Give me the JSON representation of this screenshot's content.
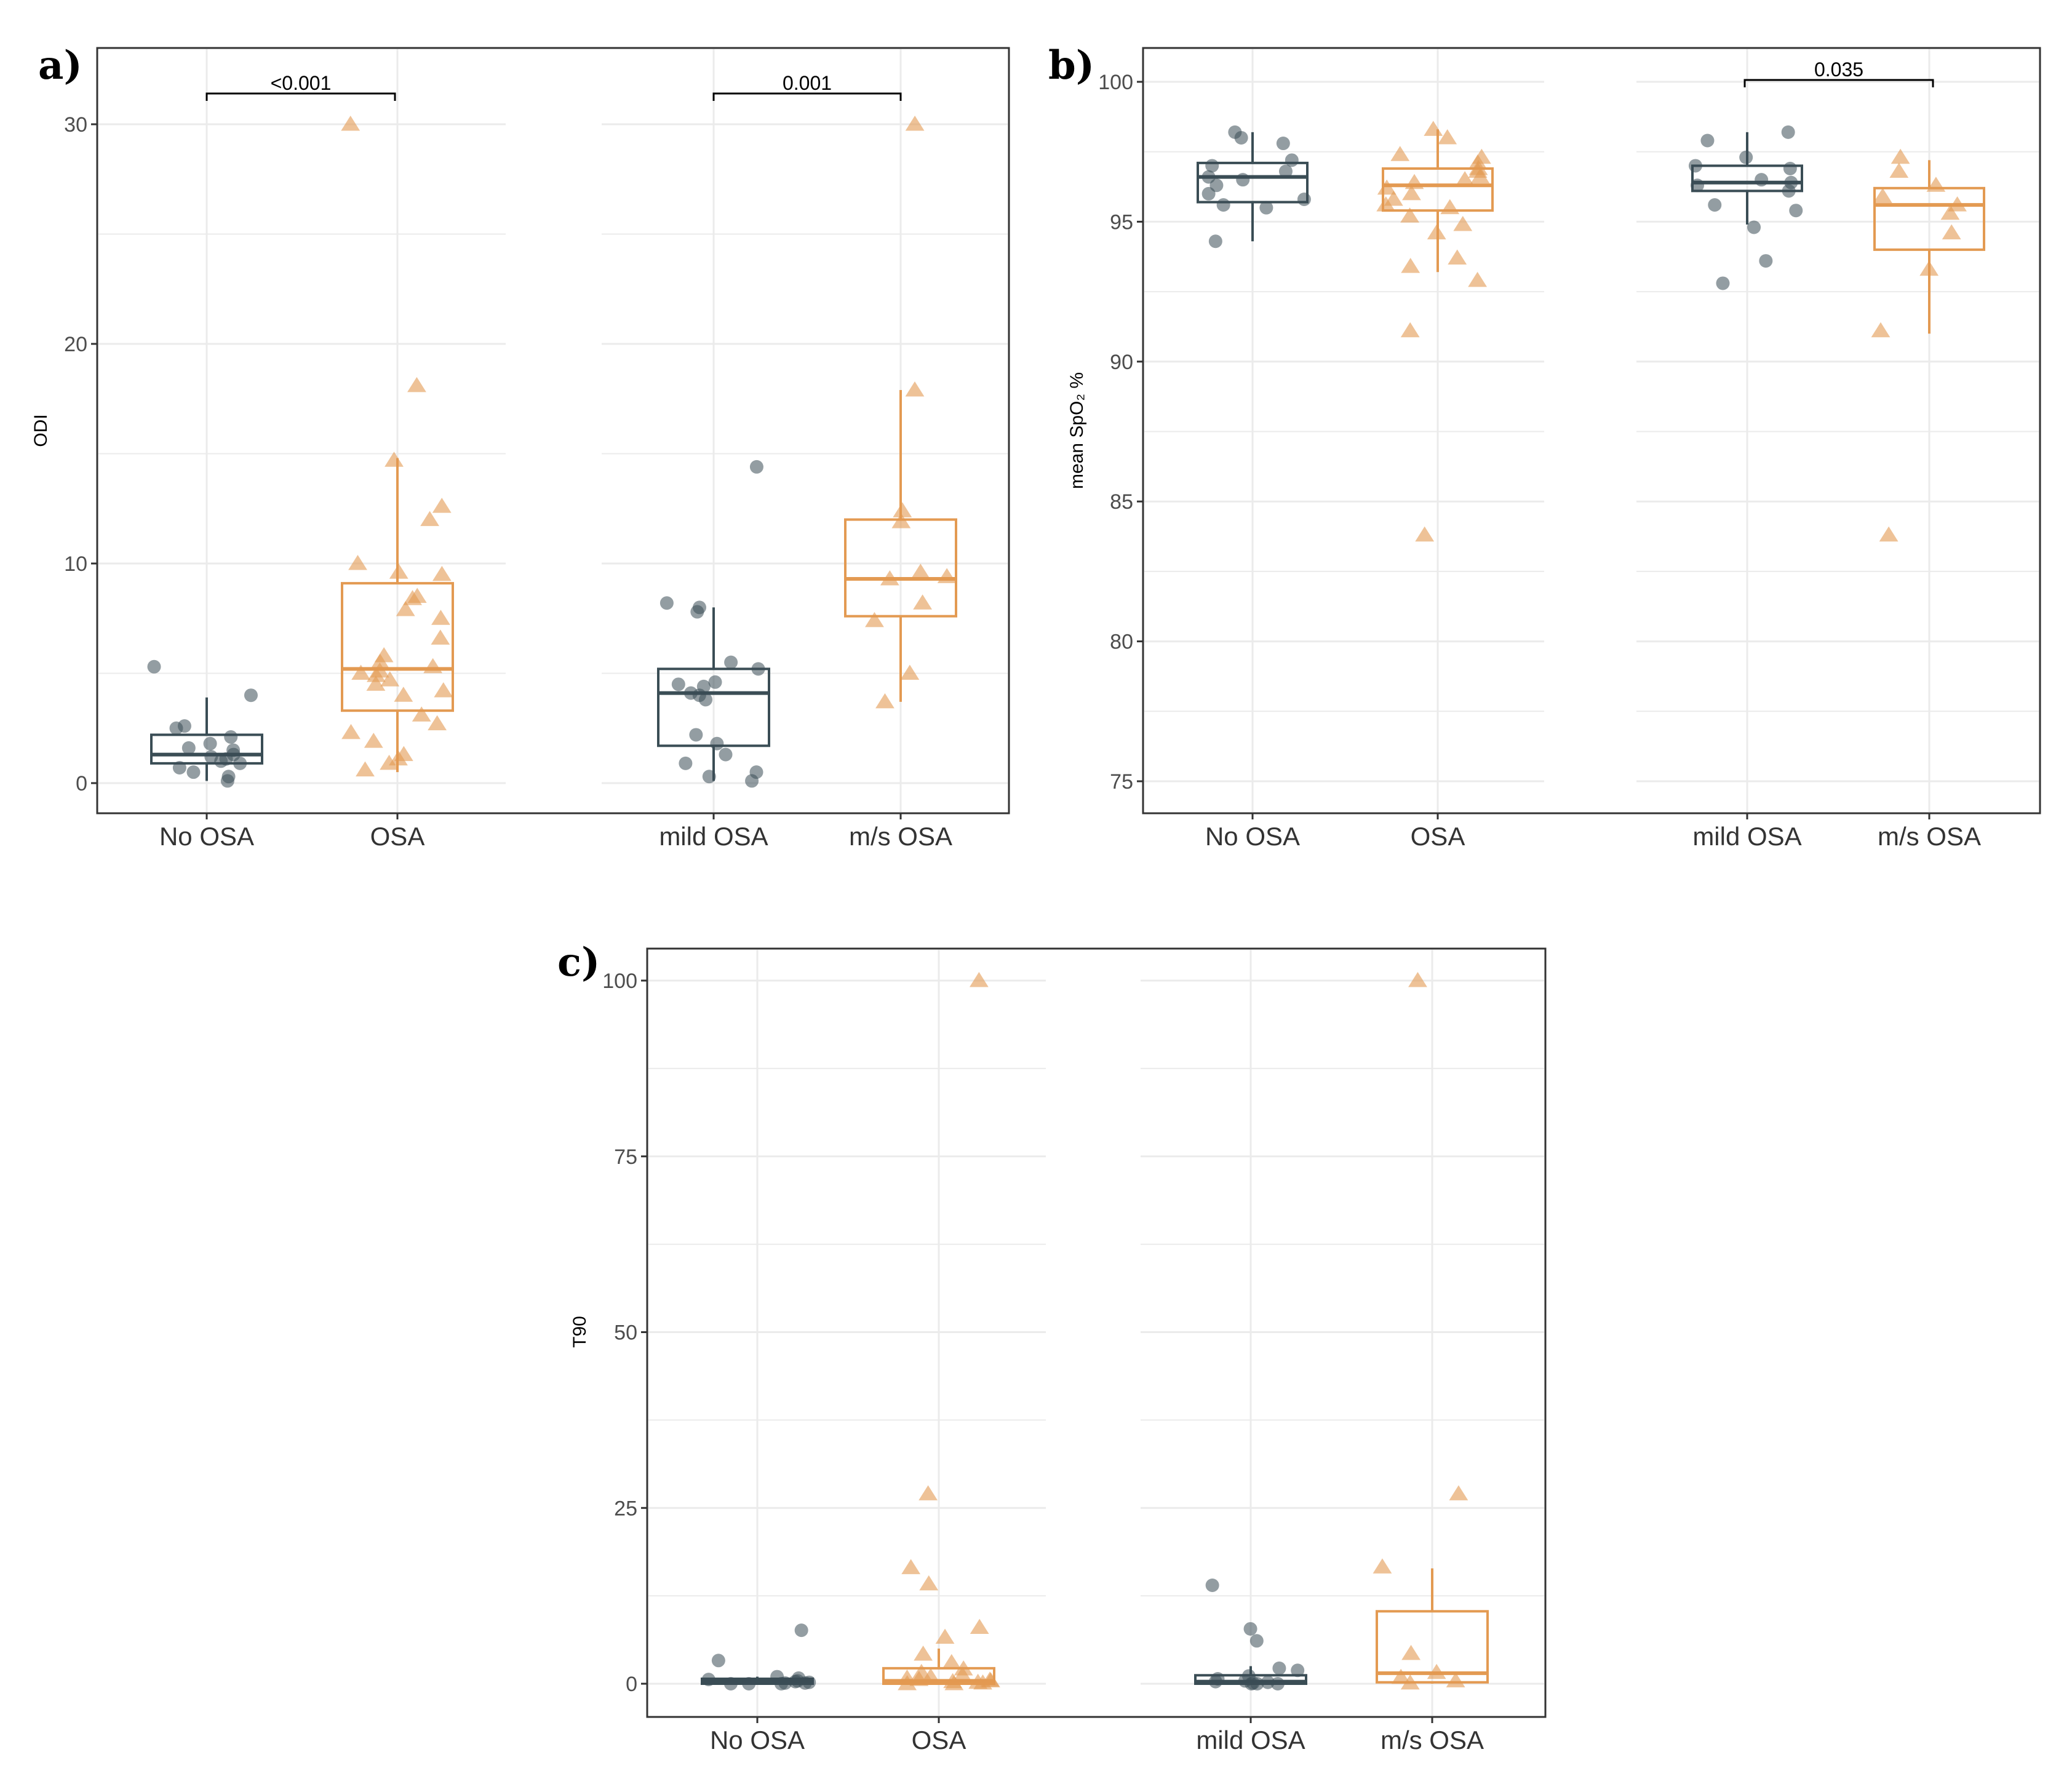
{
  "colors": {
    "noosa": "#3a4d55",
    "osa": "#e39a52",
    "grid": "#ebebeb",
    "frame": "#333333"
  },
  "chart_data": [
    {
      "type": "box",
      "panel_label": "a)",
      "ylabel": "ODI",
      "ylim": [
        -1.5,
        33.5
      ],
      "yticks": [
        0,
        10,
        20,
        30
      ],
      "categories": [
        "No OSA",
        "OSA",
        "mild OSA",
        "m/s OSA"
      ],
      "groups": [
        {
          "name": "No OSA",
          "series": "no-osa",
          "min": 0.1,
          "q1": 0.9,
          "median": 1.3,
          "q3": 2.2,
          "max": 3.9,
          "points": [
            5.3,
            4.0,
            2.6,
            2.5,
            2.1,
            1.8,
            1.6,
            1.5,
            1.3,
            1.2,
            1.1,
            1.0,
            0.9,
            0.7,
            0.5,
            0.3,
            0.1
          ]
        },
        {
          "name": "OSA",
          "series": "osa",
          "min": 0.5,
          "q1": 3.3,
          "median": 5.2,
          "q3": 9.1,
          "max": 14.8,
          "points": [
            30.0,
            18.1,
            14.7,
            12.6,
            12.0,
            10.0,
            9.6,
            9.5,
            8.5,
            8.4,
            7.9,
            7.5,
            6.6,
            5.8,
            5.5,
            5.3,
            5.1,
            5.0,
            4.9,
            4.7,
            4.5,
            4.2,
            4.0,
            3.1,
            2.7,
            2.3,
            1.9,
            1.3,
            1.1,
            0.9,
            0.6
          ]
        },
        {
          "name": "mild OSA",
          "series": "no-osa",
          "min": 0.1,
          "q1": 1.7,
          "median": 4.1,
          "q3": 5.2,
          "max": 8.0,
          "points": [
            14.4,
            8.2,
            8.0,
            7.8,
            5.5,
            5.2,
            4.6,
            4.5,
            4.4,
            4.1,
            4.0,
            3.8,
            2.2,
            1.8,
            1.3,
            0.9,
            0.5,
            0.3,
            0.1
          ]
        },
        {
          "name": "m/s OSA",
          "series": "osa",
          "min": 3.7,
          "q1": 7.6,
          "median": 9.3,
          "q3": 12.0,
          "max": 17.9,
          "points": [
            30.0,
            17.9,
            12.4,
            11.9,
            9.6,
            9.4,
            9.3,
            8.2,
            7.4,
            5.0,
            3.7
          ]
        }
      ],
      "comparisons": [
        {
          "between": [
            "No OSA",
            "OSA"
          ],
          "label": "<0.001"
        },
        {
          "between": [
            "mild OSA",
            "m/s OSA"
          ],
          "label": "0.001"
        }
      ]
    },
    {
      "type": "box",
      "panel_label": "b)",
      "ylabel": "mean SpO₂ %",
      "ylim": [
        73.8,
        101.2
      ],
      "yticks": [
        75,
        80,
        85,
        90,
        95,
        100
      ],
      "categories": [
        "No OSA",
        "OSA",
        "mild OSA",
        "m/s OSA"
      ],
      "groups": [
        {
          "name": "No OSA",
          "series": "no-osa",
          "min": 94.3,
          "q1": 95.7,
          "median": 96.6,
          "q3": 97.1,
          "max": 98.2,
          "points": [
            98.2,
            98.0,
            97.8,
            97.2,
            97.0,
            96.8,
            96.6,
            96.5,
            96.3,
            96.0,
            95.8,
            95.6,
            95.5,
            94.3
          ]
        },
        {
          "name": "OSA",
          "series": "osa",
          "min": 93.2,
          "q1": 95.4,
          "median": 96.3,
          "q3": 96.9,
          "max": 98.3,
          "points": [
            98.3,
            98.0,
            97.4,
            97.3,
            97.1,
            96.9,
            96.8,
            96.6,
            96.5,
            96.4,
            96.2,
            96.0,
            95.8,
            95.6,
            95.5,
            95.2,
            94.9,
            94.6,
            93.7,
            93.4,
            92.9,
            91.1,
            83.8
          ]
        },
        {
          "name": "mild OSA",
          "series": "no-osa",
          "min": 94.9,
          "q1": 96.1,
          "median": 96.4,
          "q3": 97.0,
          "max": 98.2,
          "points": [
            98.2,
            97.9,
            97.3,
            97.0,
            96.9,
            96.5,
            96.4,
            96.3,
            96.1,
            95.6,
            95.4,
            94.8,
            93.6,
            92.8
          ]
        },
        {
          "name": "m/s OSA",
          "series": "osa",
          "min": 91.0,
          "q1": 94.0,
          "median": 95.6,
          "q3": 96.2,
          "max": 97.2,
          "points": [
            97.3,
            96.8,
            96.3,
            95.9,
            95.6,
            95.3,
            94.6,
            93.3,
            91.1,
            83.8
          ]
        }
      ],
      "comparisons": [
        {
          "between": [
            "mild OSA",
            "m/s OSA"
          ],
          "label": "0.035"
        }
      ]
    },
    {
      "type": "box",
      "panel_label": "c)",
      "ylabel": "T90",
      "ylim": [
        -5,
        105
      ],
      "yticks": [
        0,
        25,
        50,
        75,
        100
      ],
      "categories": [
        "No OSA",
        "OSA",
        "mild OSA",
        "m/s OSA"
      ],
      "groups": [
        {
          "name": "No OSA",
          "series": "no-osa",
          "min": 0,
          "q1": 0,
          "median": 0.3,
          "q3": 0.7,
          "max": 1.0,
          "points": [
            7.6,
            3.3,
            1.0,
            0.8,
            0.6,
            0.4,
            0.3,
            0.2,
            0.1,
            0.1,
            0.0,
            0.0,
            0.0
          ]
        },
        {
          "name": "OSA",
          "series": "osa",
          "min": 0,
          "q1": 0,
          "median": 0.4,
          "q3": 2.2,
          "max": 5.0,
          "points": [
            100,
            27.0,
            16.5,
            14.2,
            8.0,
            6.6,
            4.2,
            3.0,
            2.1,
            1.6,
            1.2,
            1.0,
            0.8,
            0.6,
            0.5,
            0.4,
            0.3,
            0.2,
            0.1,
            0.0,
            0.0
          ]
        },
        {
          "name": "mild OSA",
          "series": "no-osa",
          "min": 0,
          "q1": 0,
          "median": 0.3,
          "q3": 1.2,
          "max": 2.5,
          "points": [
            14.0,
            7.8,
            6.1,
            2.2,
            1.9,
            1.1,
            0.7,
            0.4,
            0.3,
            0.2,
            0.1,
            0.0,
            0.0,
            0.0
          ]
        },
        {
          "name": "m/s OSA",
          "series": "osa",
          "min": 0,
          "q1": 0.2,
          "median": 1.5,
          "q3": 10.3,
          "max": 16.4,
          "points": [
            100,
            27.0,
            16.6,
            4.3,
            1.6,
            0.9,
            0.4,
            0.1
          ]
        }
      ],
      "comparisons": []
    }
  ]
}
